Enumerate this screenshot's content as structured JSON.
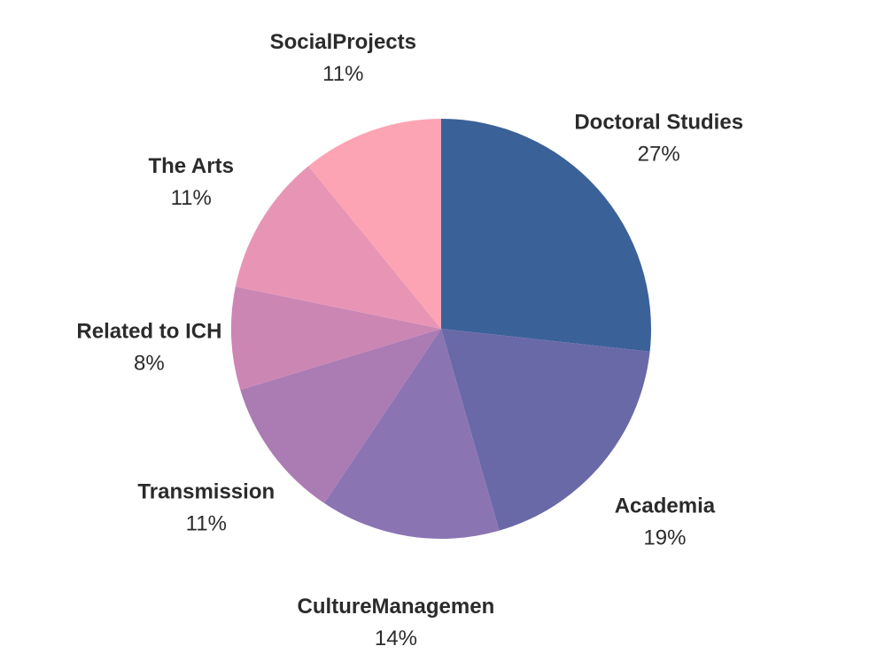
{
  "chart_data": {
    "type": "pie",
    "title": "",
    "slices": [
      {
        "label": "Doctoral Studies",
        "value": 27,
        "display": "27%",
        "color": "#3b6199"
      },
      {
        "label": "Academia",
        "value": 19,
        "display": "19%",
        "color": "#6a69a8"
      },
      {
        "label": "CultureManagemen",
        "value": 14,
        "display": "14%",
        "color": "#8b74b2"
      },
      {
        "label": "Transmission",
        "value": 11,
        "display": "11%",
        "color": "#ab7bb3"
      },
      {
        "label": "Related to ICH",
        "value": 8,
        "display": "8%",
        "color": "#cc86b4"
      },
      {
        "label": "The Arts",
        "value": 11,
        "display": "11%",
        "color": "#e895b5"
      },
      {
        "label": "SocialProjects",
        "value": 11,
        "display": "11%",
        "color": "#fda4b4"
      }
    ],
    "start_angle": "12 o'clock",
    "direction": "clockwise",
    "legend": "none"
  }
}
